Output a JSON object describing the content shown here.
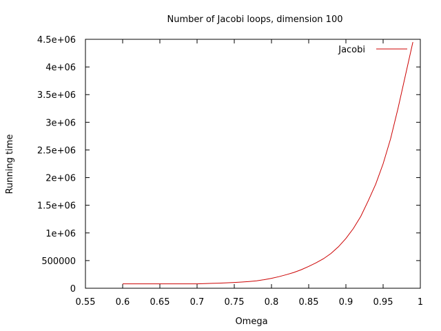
{
  "chart_data": {
    "type": "line",
    "title": "Number of Jacobi loops, dimension 100",
    "xlabel": "Omega",
    "ylabel": "Running time",
    "xlim": [
      0.55,
      1.0
    ],
    "ylim": [
      0,
      4500000
    ],
    "xticks": [
      "0.55",
      "0.6",
      "0.65",
      "0.7",
      "0.75",
      "0.8",
      "0.85",
      "0.9",
      "0.95",
      "1"
    ],
    "yticks": [
      "0",
      "500000",
      "1e+06",
      "1.5e+06",
      "2e+06",
      "2.5e+06",
      "3e+06",
      "3.5e+06",
      "4e+06",
      "4.5e+06"
    ],
    "grid": false,
    "legend_position": "top-right",
    "series": [
      {
        "name": "Jacobi",
        "color": "#cc0000",
        "x": [
          0.6,
          0.61,
          0.62,
          0.63,
          0.64,
          0.65,
          0.66,
          0.67,
          0.68,
          0.69,
          0.7,
          0.71,
          0.72,
          0.73,
          0.74,
          0.75,
          0.76,
          0.77,
          0.78,
          0.79,
          0.8,
          0.81,
          0.82,
          0.83,
          0.84,
          0.85,
          0.86,
          0.87,
          0.88,
          0.89,
          0.9,
          0.91,
          0.92,
          0.93,
          0.94,
          0.95,
          0.96,
          0.97,
          0.98,
          0.99
        ],
        "y": [
          80000,
          80000,
          80000,
          80000,
          80000,
          80000,
          80000,
          80000,
          80000,
          80000,
          80000,
          85000,
          88000,
          92000,
          98000,
          105000,
          112000,
          122000,
          135000,
          155000,
          180000,
          210000,
          245000,
          285000,
          335000,
          395000,
          460000,
          535000,
          630000,
          750000,
          900000,
          1080000,
          1300000,
          1580000,
          1880000,
          2250000,
          2700000,
          3250000,
          3850000,
          4450000
        ]
      }
    ]
  }
}
